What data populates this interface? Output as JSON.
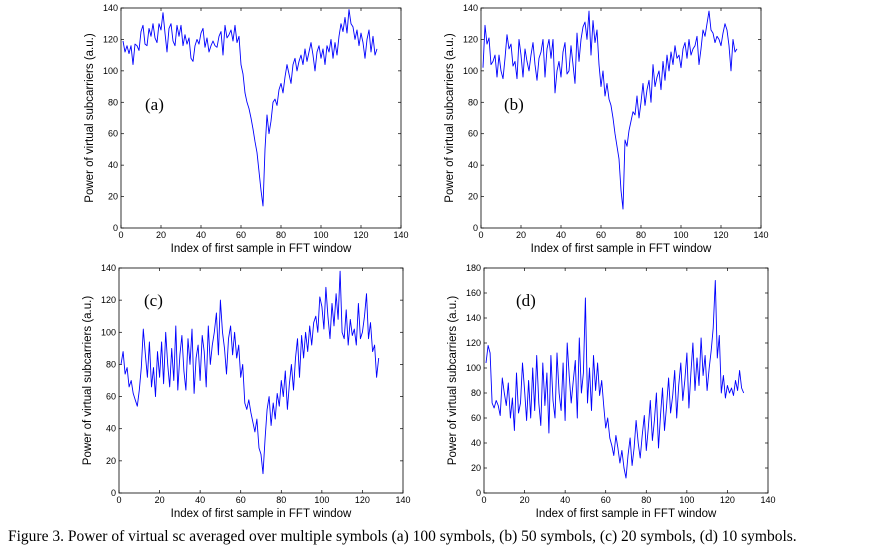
{
  "caption": "Figure 3. Power of virtual sc averaged over multiple symbols (a) 100 symbols, (b) 50 symbols, (c) 20 symbols, (d) 10 symbols.",
  "chart_data": [
    {
      "type": "line",
      "panel_label": "(a)",
      "xlabel": "Index of first sample in FFT window",
      "ylabel": "Power of virtual subcarriers (a.u.)",
      "xlim": [
        0,
        140
      ],
      "ylim": [
        0,
        140
      ],
      "xticks": [
        0,
        20,
        40,
        60,
        80,
        100,
        120,
        140
      ],
      "yticks": [
        0,
        20,
        40,
        60,
        80,
        100,
        120,
        140
      ],
      "line_color": "#0000ff",
      "x": [
        1,
        2,
        3,
        4,
        5,
        6,
        7,
        8,
        9,
        10,
        11,
        12,
        13,
        14,
        15,
        16,
        17,
        18,
        19,
        20,
        21,
        22,
        23,
        24,
        25,
        26,
        27,
        28,
        29,
        30,
        31,
        32,
        33,
        34,
        35,
        36,
        37,
        38,
        39,
        40,
        41,
        42,
        43,
        44,
        45,
        46,
        47,
        48,
        49,
        50,
        51,
        52,
        53,
        54,
        55,
        56,
        57,
        58,
        59,
        60,
        61,
        62,
        63,
        64,
        65,
        66,
        67,
        68,
        69,
        70,
        71,
        72,
        73,
        74,
        75,
        76,
        77,
        78,
        79,
        80,
        81,
        82,
        83,
        84,
        85,
        86,
        87,
        88,
        89,
        90,
        91,
        92,
        93,
        94,
        95,
        96,
        97,
        98,
        99,
        100,
        101,
        102,
        103,
        104,
        105,
        106,
        107,
        108,
        109,
        110,
        111,
        112,
        113,
        114,
        115,
        116,
        117,
        118,
        119,
        120,
        121,
        122,
        123,
        124,
        125,
        126,
        127,
        128
      ],
      "values": [
        119,
        112,
        116,
        111,
        116,
        104,
        117,
        116,
        113,
        125,
        129,
        117,
        116,
        127,
        122,
        130,
        121,
        118,
        130,
        126,
        137,
        124,
        112,
        127,
        130,
        119,
        116,
        129,
        122,
        129,
        116,
        123,
        117,
        121,
        108,
        106,
        116,
        120,
        117,
        124,
        127,
        115,
        121,
        112,
        116,
        119,
        116,
        115,
        122,
        125,
        110,
        129,
        121,
        123,
        126,
        119,
        129,
        118,
        122,
        104,
        98,
        86,
        80,
        76,
        70,
        63,
        55,
        48,
        36,
        24,
        14,
        50,
        72,
        60,
        68,
        80,
        82,
        78,
        88,
        92,
        86,
        96,
        104,
        98,
        92,
        104,
        108,
        100,
        106,
        110,
        104,
        114,
        106,
        112,
        118,
        110,
        100,
        112,
        116,
        108,
        114,
        104,
        116,
        112,
        120,
        108,
        118,
        110,
        122,
        130,
        125,
        134,
        124,
        139,
        130,
        128,
        120,
        126,
        116,
        124,
        118,
        108,
        120,
        126,
        112,
        122,
        110,
        114
      ]
    },
    {
      "type": "line",
      "panel_label": "(b)",
      "xlabel": "Index of first sample in FFT window",
      "ylabel": "Power of virtual subcarriers (a.u.)",
      "xlim": [
        0,
        140
      ],
      "ylim": [
        0,
        140
      ],
      "xticks": [
        0,
        20,
        40,
        60,
        80,
        100,
        120,
        140
      ],
      "yticks": [
        0,
        20,
        40,
        60,
        80,
        100,
        120,
        140
      ],
      "line_color": "#0000ff",
      "x": [
        1,
        2,
        3,
        4,
        5,
        6,
        7,
        8,
        9,
        10,
        11,
        12,
        13,
        14,
        15,
        16,
        17,
        18,
        19,
        20,
        21,
        22,
        23,
        24,
        25,
        26,
        27,
        28,
        29,
        30,
        31,
        32,
        33,
        34,
        35,
        36,
        37,
        38,
        39,
        40,
        41,
        42,
        43,
        44,
        45,
        46,
        47,
        48,
        49,
        50,
        51,
        52,
        53,
        54,
        55,
        56,
        57,
        58,
        59,
        60,
        61,
        62,
        63,
        64,
        65,
        66,
        67,
        68,
        69,
        70,
        71,
        72,
        73,
        74,
        75,
        76,
        77,
        78,
        79,
        80,
        81,
        82,
        83,
        84,
        85,
        86,
        87,
        88,
        89,
        90,
        91,
        92,
        93,
        94,
        95,
        96,
        97,
        98,
        99,
        100,
        101,
        102,
        103,
        104,
        105,
        106,
        107,
        108,
        109,
        110,
        111,
        112,
        113,
        114,
        115,
        116,
        117,
        118,
        119,
        120,
        121,
        122,
        123,
        124,
        125,
        126,
        127,
        128
      ],
      "values": [
        102,
        129,
        117,
        121,
        104,
        106,
        110,
        96,
        110,
        100,
        95,
        108,
        123,
        114,
        117,
        103,
        106,
        95,
        120,
        110,
        96,
        114,
        106,
        100,
        110,
        118,
        104,
        94,
        108,
        112,
        120,
        96,
        114,
        120,
        108,
        120,
        86,
        100,
        106,
        96,
        112,
        118,
        98,
        100,
        116,
        104,
        92,
        124,
        106,
        120,
        128,
        131,
        120,
        138,
        110,
        132,
        118,
        126,
        104,
        90,
        100,
        84,
        92,
        82,
        78,
        70,
        60,
        52,
        44,
        24,
        12,
        56,
        52,
        62,
        68,
        74,
        72,
        84,
        70,
        80,
        92,
        78,
        88,
        94,
        80,
        104,
        90,
        96,
        100,
        88,
        106,
        94,
        110,
        100,
        112,
        104,
        116,
        108,
        110,
        102,
        114,
        118,
        108,
        120,
        110,
        114,
        116,
        122,
        104,
        114,
        126,
        122,
        130,
        138,
        126,
        124,
        118,
        122,
        120,
        116,
        124,
        130,
        126,
        116,
        100,
        120,
        112,
        114
      ]
    },
    {
      "type": "line",
      "panel_label": "(c)",
      "xlabel": "Index of first sample in FFT window",
      "ylabel": "Power of virtual subcarriers (a.u.)",
      "xlim": [
        0,
        140
      ],
      "ylim": [
        0,
        140
      ],
      "xticks": [
        0,
        20,
        40,
        60,
        80,
        100,
        120,
        140
      ],
      "yticks": [
        0,
        20,
        40,
        60,
        80,
        100,
        120,
        140
      ],
      "line_color": "#0000ff",
      "x": [
        1,
        2,
        3,
        4,
        5,
        6,
        7,
        8,
        9,
        10,
        11,
        12,
        13,
        14,
        15,
        16,
        17,
        18,
        19,
        20,
        21,
        22,
        23,
        24,
        25,
        26,
        27,
        28,
        29,
        30,
        31,
        32,
        33,
        34,
        35,
        36,
        37,
        38,
        39,
        40,
        41,
        42,
        43,
        44,
        45,
        46,
        47,
        48,
        49,
        50,
        51,
        52,
        53,
        54,
        55,
        56,
        57,
        58,
        59,
        60,
        61,
        62,
        63,
        64,
        65,
        66,
        67,
        68,
        69,
        70,
        71,
        72,
        73,
        74,
        75,
        76,
        77,
        78,
        79,
        80,
        81,
        82,
        83,
        84,
        85,
        86,
        87,
        88,
        89,
        90,
        91,
        92,
        93,
        94,
        95,
        96,
        97,
        98,
        99,
        100,
        101,
        102,
        103,
        104,
        105,
        106,
        107,
        108,
        109,
        110,
        111,
        112,
        113,
        114,
        115,
        116,
        117,
        118,
        119,
        120,
        121,
        122,
        123,
        124,
        125,
        126,
        127,
        128
      ],
      "values": [
        80,
        88,
        74,
        78,
        66,
        70,
        62,
        58,
        54,
        64,
        78,
        102,
        86,
        72,
        94,
        66,
        78,
        60,
        88,
        72,
        94,
        68,
        100,
        80,
        66,
        90,
        70,
        104,
        64,
        86,
        98,
        76,
        64,
        96,
        80,
        102,
        62,
        84,
        92,
        70,
        98,
        88,
        66,
        104,
        80,
        92,
        100,
        112,
        86,
        120,
        100,
        90,
        74,
        96,
        104,
        86,
        100,
        84,
        92,
        72,
        80,
        56,
        52,
        58,
        50,
        44,
        38,
        46,
        28,
        24,
        12,
        34,
        52,
        60,
        42,
        56,
        46,
        62,
        54,
        70,
        60,
        76,
        52,
        68,
        80,
        64,
        84,
        96,
        72,
        98,
        84,
        100,
        88,
        104,
        92,
        106,
        110,
        100,
        122,
        116,
        102,
        128,
        110,
        96,
        118,
        104,
        124,
        108,
        138,
        100,
        96,
        114,
        92,
        108,
        98,
        102,
        92,
        118,
        96,
        100,
        110,
        124,
        96,
        106,
        88,
        92,
        72,
        84
      ]
    },
    {
      "type": "line",
      "panel_label": "(d)",
      "xlabel": "Index of first sample in FFT window",
      "ylabel": "Power of virtual subcarriers (a.u.)",
      "xlim": [
        0,
        140
      ],
      "ylim": [
        0,
        180
      ],
      "xticks": [
        0,
        20,
        40,
        60,
        80,
        100,
        120,
        140
      ],
      "yticks": [
        0,
        20,
        40,
        60,
        80,
        100,
        120,
        140,
        160,
        180
      ],
      "line_color": "#0000ff",
      "x": [
        1,
        2,
        3,
        4,
        5,
        6,
        7,
        8,
        9,
        10,
        11,
        12,
        13,
        14,
        15,
        16,
        17,
        18,
        19,
        20,
        21,
        22,
        23,
        24,
        25,
        26,
        27,
        28,
        29,
        30,
        31,
        32,
        33,
        34,
        35,
        36,
        37,
        38,
        39,
        40,
        41,
        42,
        43,
        44,
        45,
        46,
        47,
        48,
        49,
        50,
        51,
        52,
        53,
        54,
        55,
        56,
        57,
        58,
        59,
        60,
        61,
        62,
        63,
        64,
        65,
        66,
        67,
        68,
        69,
        70,
        71,
        72,
        73,
        74,
        75,
        76,
        77,
        78,
        79,
        80,
        81,
        82,
        83,
        84,
        85,
        86,
        87,
        88,
        89,
        90,
        91,
        92,
        93,
        94,
        95,
        96,
        97,
        98,
        99,
        100,
        101,
        102,
        103,
        104,
        105,
        106,
        107,
        108,
        109,
        110,
        111,
        112,
        113,
        114,
        115,
        116,
        117,
        118,
        119,
        120,
        121,
        122,
        123,
        124,
        125,
        126,
        127,
        128
      ],
      "values": [
        104,
        118,
        112,
        72,
        68,
        74,
        70,
        62,
        92,
        80,
        70,
        88,
        60,
        76,
        50,
        96,
        64,
        72,
        104,
        82,
        58,
        90,
        60,
        100,
        66,
        110,
        72,
        54,
        104,
        70,
        96,
        48,
        110,
        74,
        60,
        112,
        80,
        66,
        104,
        58,
        120,
        94,
        72,
        90,
        106,
        60,
        124,
        80,
        96,
        156,
        72,
        100,
        66,
        110,
        82,
        104,
        78,
        90,
        70,
        52,
        60,
        44,
        38,
        30,
        46,
        36,
        24,
        34,
        20,
        12,
        30,
        44,
        22,
        36,
        58,
        40,
        28,
        46,
        62,
        34,
        52,
        74,
        42,
        58,
        80,
        36,
        62,
        84,
        50,
        70,
        92,
        64,
        78,
        98,
        60,
        86,
        104,
        74,
        90,
        112,
        68,
        96,
        120,
        82,
        108,
        86,
        124,
        94,
        110,
        82,
        100,
        114,
        132,
        170,
        108,
        126,
        80,
        94,
        76,
        86,
        80,
        84,
        78,
        90,
        82,
        98,
        84,
        80
      ]
    }
  ]
}
